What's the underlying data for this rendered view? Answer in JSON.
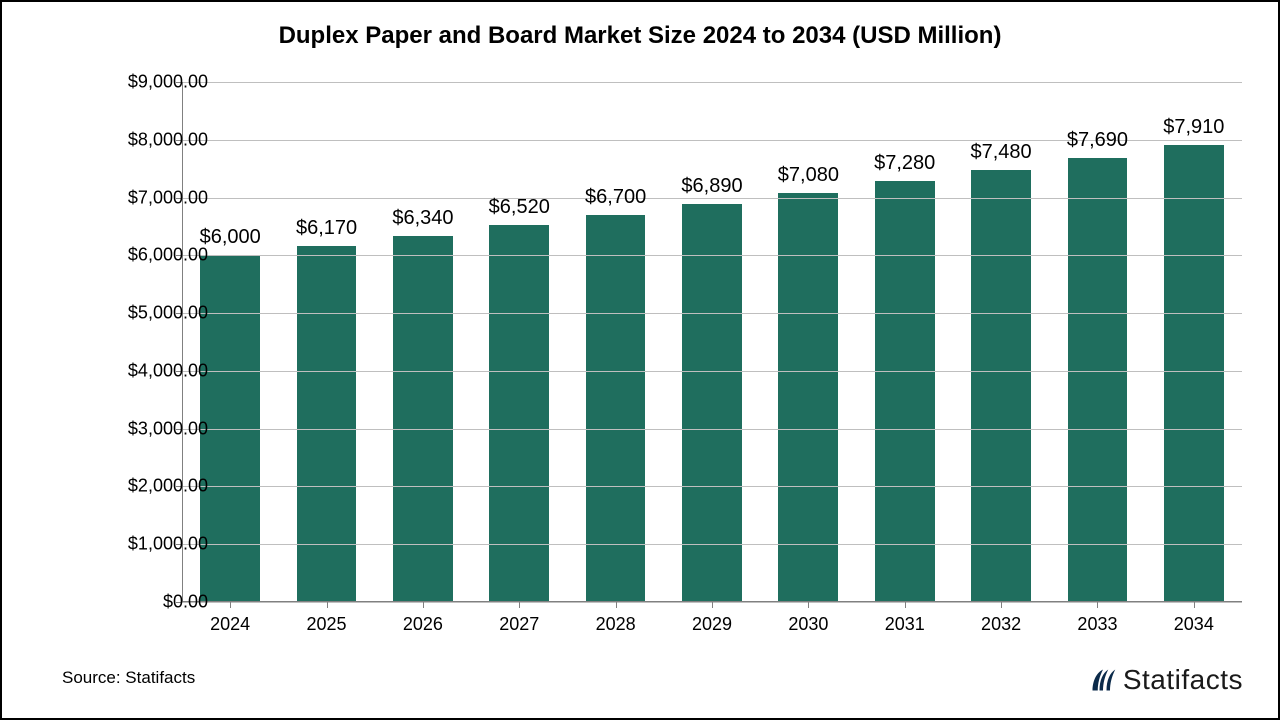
{
  "chart": {
    "type": "bar",
    "title": "Duplex Paper and Board Market Size 2024 to 2034 (USD Million)",
    "title_fontsize": 24,
    "title_fontweight": "700",
    "title_color": "#000000",
    "background_color": "#ffffff",
    "border_color": "#000000",
    "grid_color": "#bfbfbf",
    "axis_color": "#808080",
    "bar_color": "#1f6e5e",
    "bar_width_ratio": 0.62,
    "categories": [
      "2024",
      "2025",
      "2026",
      "2027",
      "2028",
      "2029",
      "2030",
      "2031",
      "2032",
      "2033",
      "2034"
    ],
    "values": [
      6000,
      6170,
      6340,
      6520,
      6700,
      6890,
      7080,
      7280,
      7480,
      7690,
      7910
    ],
    "bar_labels": [
      "$6,000",
      "$6,170",
      "$6,340",
      "$6,520",
      "$6,700",
      "$6,890",
      "$7,080",
      "$7,280",
      "$7,480",
      "$7,690",
      "$7,910"
    ],
    "ylim": [
      0,
      9000
    ],
    "ytick_step": 1000,
    "ytick_labels": [
      "$0.00",
      "$1,000.00",
      "$2,000.00",
      "$3,000.00",
      "$4,000.00",
      "$5,000.00",
      "$6,000.00",
      "$7,000.00",
      "$8,000.00",
      "$9,000.00"
    ],
    "label_fontsize": 18,
    "tick_fontsize": 18,
    "bar_label_fontsize": 20
  },
  "source_text": "Source: Statifacts",
  "source_fontsize": 17,
  "brand_text": "Statifacts",
  "brand_fontsize": 28,
  "brand_color": "#1a1a1a",
  "brand_icon_color": "#0b2a4a"
}
